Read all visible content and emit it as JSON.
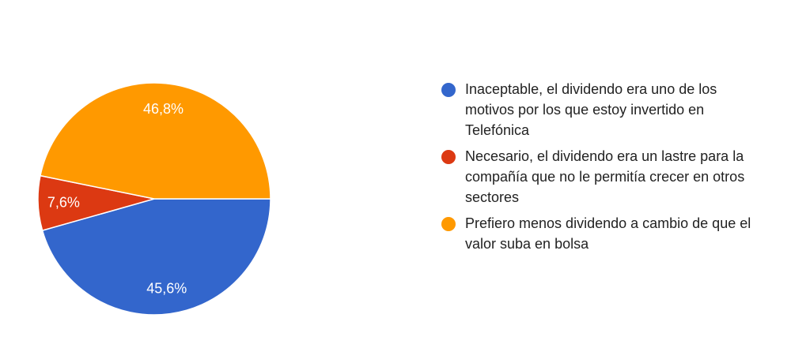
{
  "chart_data": {
    "type": "pie",
    "title": "",
    "slices": [
      {
        "label": "Inaceptable, el dividendo era uno de los motivos por los que estoy invertido en Telefónica",
        "value": 45.6,
        "display": "45,6%",
        "color": "#3366cc"
      },
      {
        "label": "Necesario, el dividendo era un lastre para la compañía que no le permitía crecer en otros sectores",
        "value": 7.6,
        "display": "7,6%",
        "color": "#dc3912"
      },
      {
        "label": "Prefiero menos dividendo a cambio de que el valor suba en bolsa",
        "value": 46.8,
        "display": "46,8%",
        "color": "#ff9900"
      }
    ],
    "start_angle_deg": 90,
    "direction": "clockwise",
    "legend_position": "right"
  }
}
